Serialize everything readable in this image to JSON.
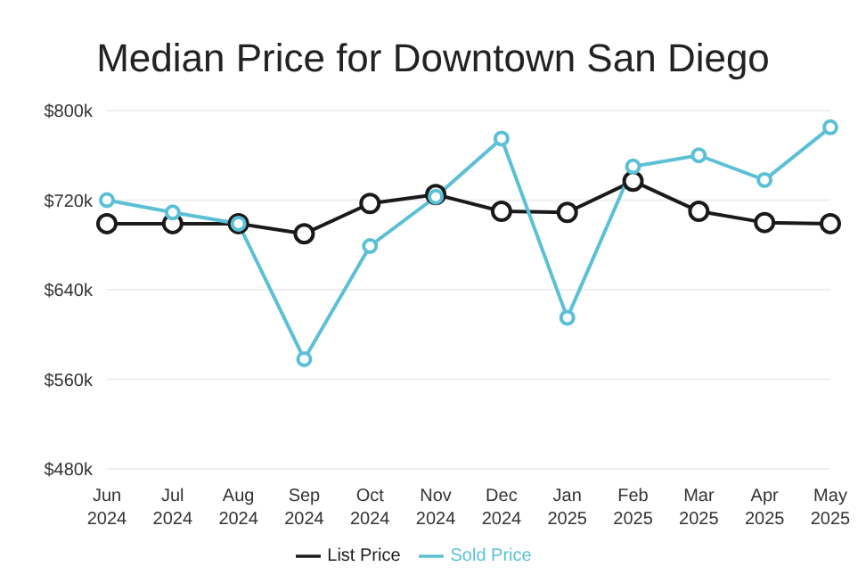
{
  "chart_data": {
    "type": "line",
    "title": "Median Price for Downtown San Diego",
    "categories": [
      "Jun 2024",
      "Jul 2024",
      "Aug 2024",
      "Sep 2024",
      "Oct 2024",
      "Nov 2024",
      "Dec 2024",
      "Jan 2025",
      "Feb 2025",
      "Mar 2025",
      "Apr 2025",
      "May 2025"
    ],
    "series": [
      {
        "name": "List Price",
        "color": "#1a1a1a",
        "values": [
          699,
          699,
          699,
          690,
          717,
          725,
          710,
          709,
          737,
          710,
          700,
          699
        ]
      },
      {
        "name": "Sold Price",
        "color": "#5bc0d6",
        "values": [
          720,
          709,
          699,
          578,
          679,
          723,
          775,
          615,
          750,
          760,
          738,
          785
        ]
      }
    ],
    "ylim": [
      480,
      800
    ],
    "yticks": [
      {
        "value": 480,
        "label": "$480k"
      },
      {
        "value": 560,
        "label": "$560k"
      },
      {
        "value": 640,
        "label": "$640k"
      },
      {
        "value": 720,
        "label": "$720k"
      },
      {
        "value": 800,
        "label": "$800k"
      }
    ],
    "grid": "y",
    "legend": "bottom",
    "marker": "circle",
    "line_style": "solid"
  }
}
